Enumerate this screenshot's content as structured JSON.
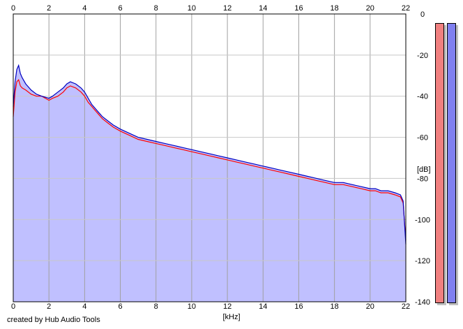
{
  "chart_data": {
    "type": "line",
    "x_unit_label": "[kHz]",
    "y_unit_label": "[dB]",
    "x_range": [
      0,
      22
    ],
    "y_range": [
      -140,
      0
    ],
    "x_ticks": [
      "0",
      "2",
      "4",
      "6",
      "8",
      "10",
      "12",
      "14",
      "16",
      "18",
      "20",
      "22"
    ],
    "y_ticks": [
      "0",
      "-20",
      "-40",
      "-60",
      "-80",
      "-100",
      "-120",
      "-140"
    ],
    "grid": true,
    "fill_color": "#c0c0ff",
    "series": [
      {
        "color": "#ff0000",
        "x": [
          0,
          0.1,
          0.2,
          0.3,
          0.4,
          0.5,
          0.7,
          1,
          1.3,
          1.6,
          2,
          2.2,
          2.5,
          2.8,
          3,
          3.2,
          3.5,
          3.8,
          4,
          4.2,
          4.4,
          4.6,
          4.8,
          5,
          5.3,
          5.6,
          6,
          6.5,
          7,
          7.5,
          8,
          8.5,
          9,
          9.5,
          10,
          10.5,
          11,
          11.5,
          12,
          12.5,
          13,
          13.5,
          14,
          14.5,
          15,
          15.5,
          16,
          16.5,
          17,
          17.5,
          18,
          18.5,
          19,
          19.5,
          20,
          20.3,
          20.6,
          21,
          21.4,
          21.7,
          21.85,
          22
        ],
        "y": [
          -50,
          -38,
          -33,
          -32,
          -35,
          -36,
          -37,
          -39,
          -40,
          -40,
          -42,
          -41,
          -40,
          -38,
          -36,
          -35,
          -36,
          -38,
          -40,
          -43,
          -45,
          -47,
          -49,
          -51,
          -53,
          -55,
          -57,
          -59,
          -61,
          -62,
          -63,
          -64,
          -65,
          -66,
          -67,
          -68,
          -69,
          -70,
          -71,
          -72,
          -73,
          -74,
          -75,
          -76,
          -77,
          -78,
          -79,
          -80,
          -81,
          -82,
          -83,
          -83,
          -84,
          -85,
          -86,
          -86,
          -87,
          -87,
          -88,
          -89,
          -92,
          -110
        ]
      },
      {
        "color": "#0000c0",
        "x": [
          0,
          0.1,
          0.2,
          0.3,
          0.4,
          0.5,
          0.7,
          1,
          1.3,
          1.6,
          2,
          2.2,
          2.5,
          2.8,
          3,
          3.2,
          3.5,
          3.8,
          4,
          4.2,
          4.4,
          4.6,
          4.8,
          5,
          5.3,
          5.6,
          6,
          6.5,
          7,
          7.5,
          8,
          8.5,
          9,
          9.5,
          10,
          10.5,
          11,
          11.5,
          12,
          12.5,
          13,
          13.5,
          14,
          14.5,
          15,
          15.5,
          16,
          16.5,
          17,
          17.5,
          18,
          18.5,
          19,
          19.5,
          20,
          20.3,
          20.6,
          21,
          21.4,
          21.7,
          21.85,
          22
        ],
        "y": [
          -45,
          -33,
          -27,
          -25,
          -29,
          -31,
          -34,
          -37,
          -39,
          -40,
          -41,
          -40,
          -38,
          -36,
          -34,
          -33,
          -34,
          -36,
          -38,
          -41,
          -44,
          -46,
          -48,
          -50,
          -52,
          -54,
          -56,
          -58,
          -60,
          -61,
          -62,
          -63,
          -64,
          -65,
          -66,
          -67,
          -68,
          -69,
          -70,
          -71,
          -72,
          -73,
          -74,
          -75,
          -76,
          -77,
          -78,
          -79,
          -80,
          -81,
          -82,
          -82,
          -83,
          -84,
          -85,
          -85,
          -86,
          -86,
          -87,
          -88,
          -91,
          -112
        ]
      }
    ]
  },
  "footer": {
    "credit": "created by Hub Audio Tools"
  },
  "meters": [
    {
      "color": "#f08080",
      "level": 0
    },
    {
      "color": "#8080f0",
      "level": 0
    }
  ]
}
